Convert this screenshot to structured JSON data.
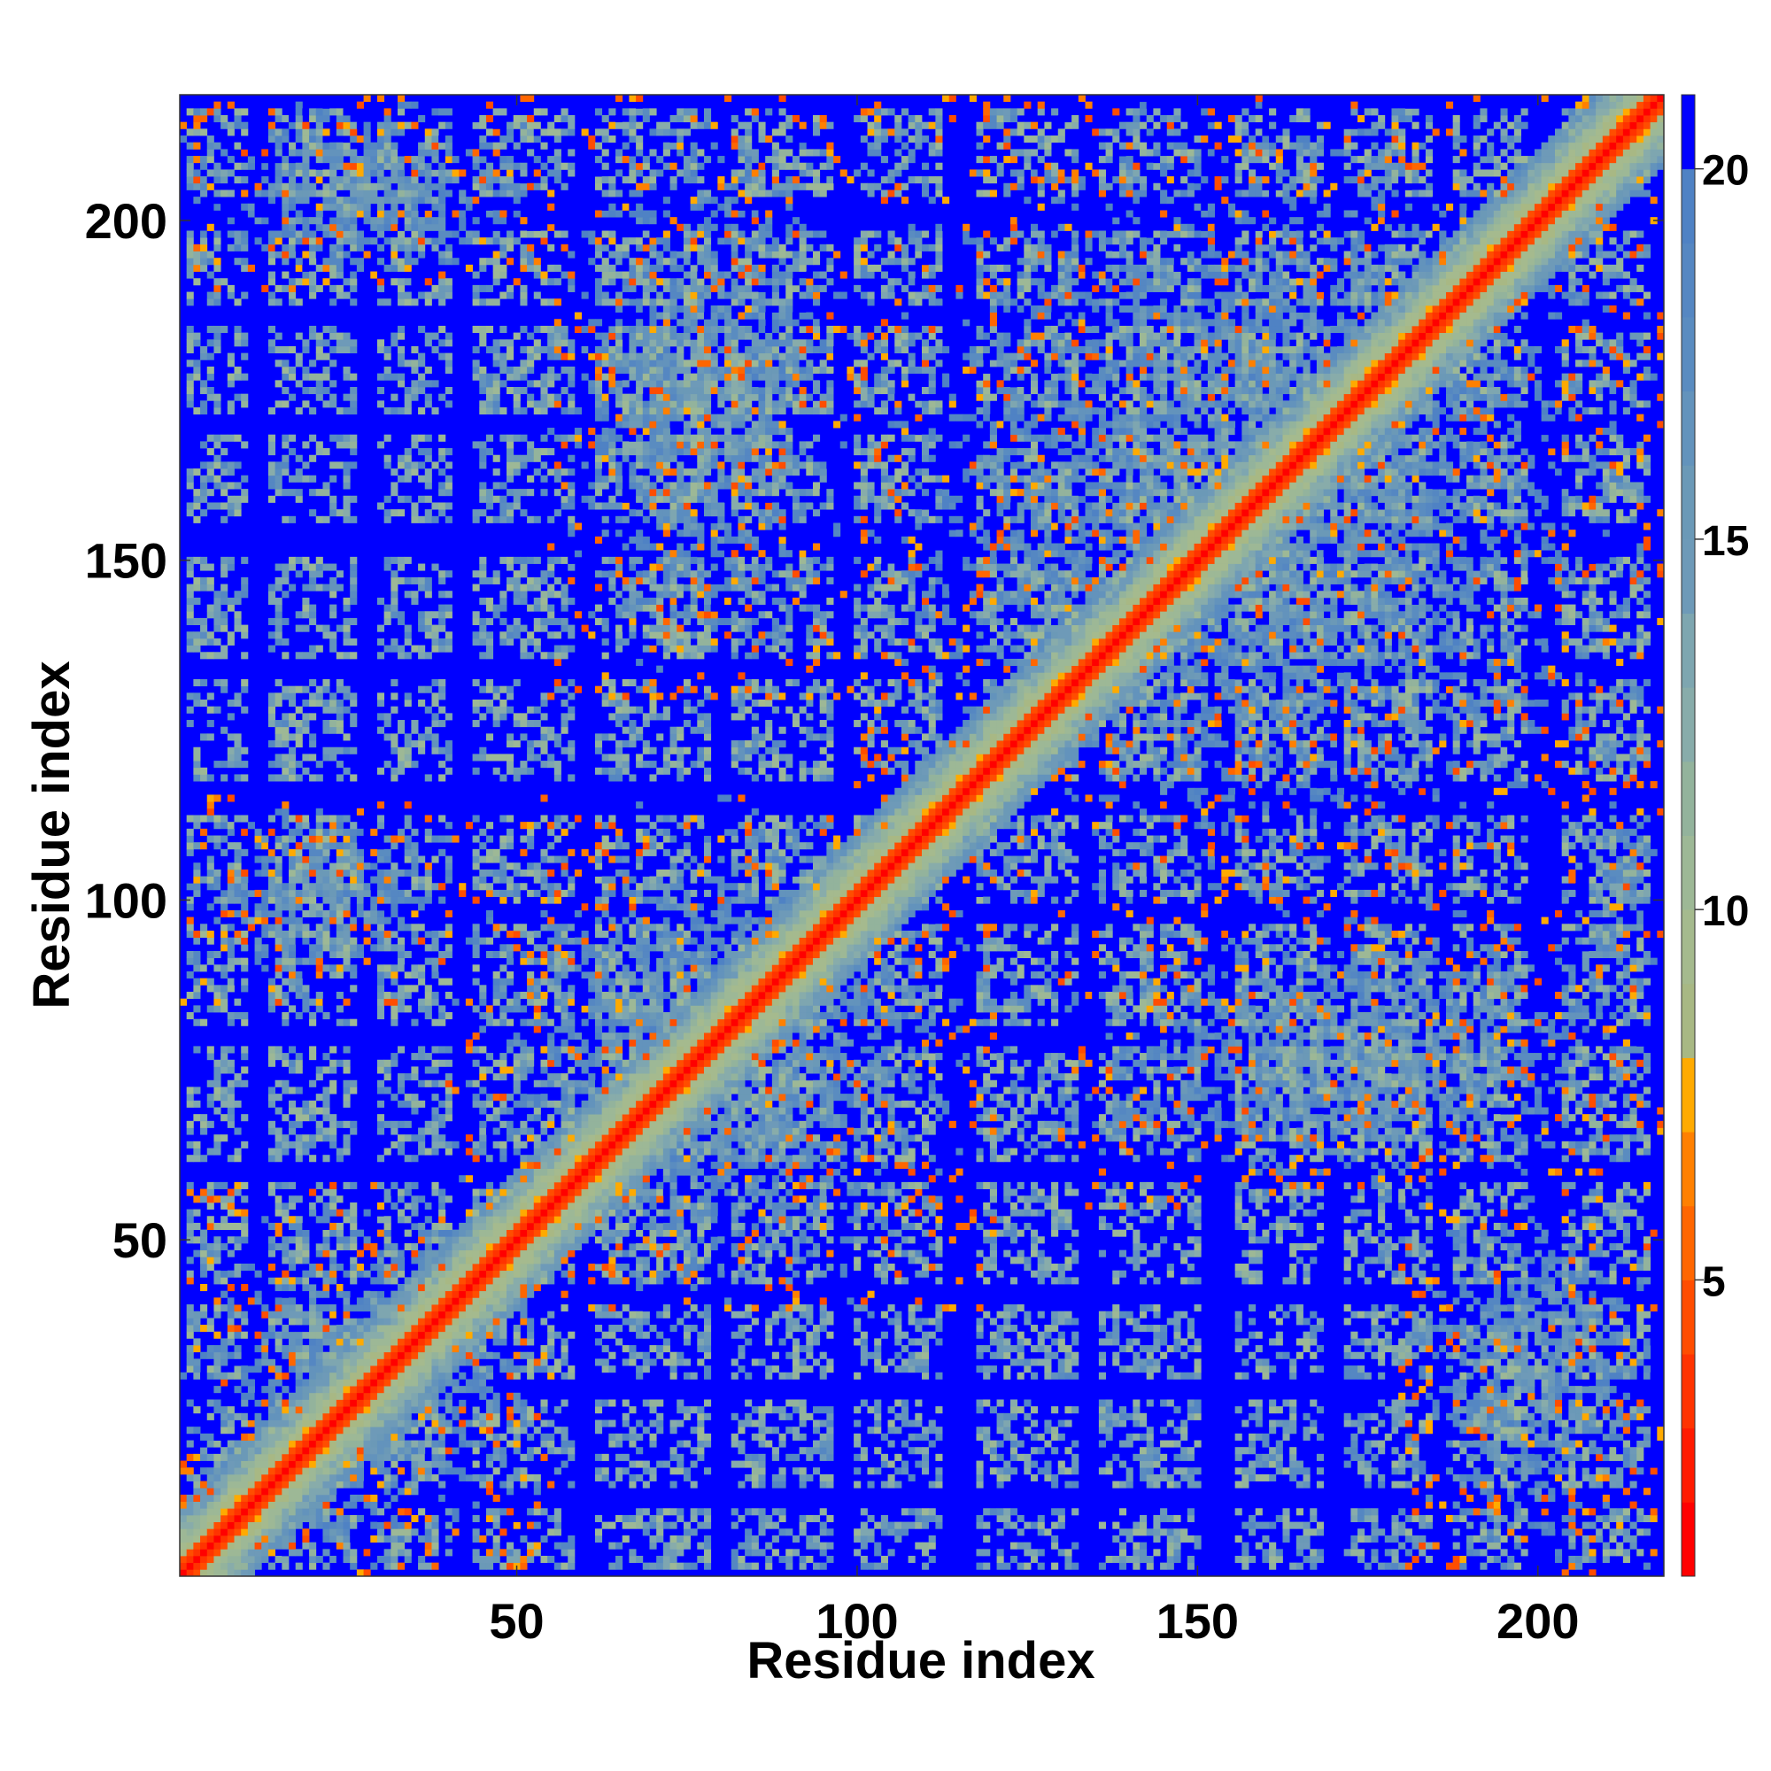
{
  "chart_data": {
    "type": "heatmap",
    "title": "",
    "xlabel": "Residue index",
    "ylabel": "Residue index",
    "n_residues": 218,
    "xlim": [
      1,
      218
    ],
    "ylim": [
      1,
      218
    ],
    "x_ticks": [
      50,
      100,
      150,
      200
    ],
    "y_ticks": [
      50,
      100,
      150,
      200
    ],
    "colorbar": {
      "ticks": [
        5,
        10,
        15,
        20
      ],
      "range": [
        1,
        21
      ],
      "levels": [
        {
          "max": 2,
          "color": "#ff0000"
        },
        {
          "max": 3,
          "color": "#ff1a00"
        },
        {
          "max": 4,
          "color": "#ff3300"
        },
        {
          "max": 5,
          "color": "#ff4d00"
        },
        {
          "max": 6,
          "color": "#ff6600"
        },
        {
          "max": 7,
          "color": "#ff8000"
        },
        {
          "max": 8,
          "color": "#ffaa00"
        },
        {
          "max": 9,
          "color": "#a8b884"
        },
        {
          "max": 10,
          "color": "#a5ba8e"
        },
        {
          "max": 11,
          "color": "#9db896"
        },
        {
          "max": 12,
          "color": "#93b39c"
        },
        {
          "max": 13,
          "color": "#88acaa"
        },
        {
          "max": 14,
          "color": "#7ea6b0"
        },
        {
          "max": 15,
          "color": "#6e9ab8"
        },
        {
          "max": 16,
          "color": "#6b99b7"
        },
        {
          "max": 17,
          "color": "#6393bc"
        },
        {
          "max": 18,
          "color": "#5a8cc0"
        },
        {
          "max": 19,
          "color": "#5587c2"
        },
        {
          "max": 20,
          "color": "#4f82c4"
        },
        {
          "max": 21,
          "color": "#0000ff"
        }
      ]
    },
    "structure": {
      "helices": [
        [
          2,
          10
        ],
        [
          14,
          26
        ],
        [
          30,
          40
        ],
        [
          44,
          58
        ],
        [
          62,
          78
        ],
        [
          82,
          96
        ],
        [
          100,
          112
        ],
        [
          118,
          132
        ],
        [
          136,
          150
        ],
        [
          156,
          168
        ],
        [
          172,
          184
        ],
        [
          188,
          198
        ],
        [
          204,
          216
        ]
      ],
      "contact_blocks": [
        {
          "x": [
            1,
            55
          ],
          "y": [
            1,
            58
          ]
        },
        {
          "x": [
            40,
            120
          ],
          "y": [
            40,
            115
          ]
        },
        {
          "x": [
            100,
            218
          ],
          "y": [
            100,
            218
          ]
        },
        {
          "x": [
            1,
            55
          ],
          "y": [
            190,
            218
          ]
        },
        {
          "x": [
            180,
            218
          ],
          "y": [
            1,
            60
          ]
        },
        {
          "x": [
            1,
            40
          ],
          "y": [
            85,
            115
          ]
        },
        {
          "x": [
            205,
            218
          ],
          "y": [
            85,
            115
          ]
        },
        {
          "x": [
            55,
            100
          ],
          "y": [
            130,
            218
          ]
        },
        {
          "x": [
            130,
            218
          ],
          "y": [
            55,
            100
          ]
        }
      ]
    }
  }
}
